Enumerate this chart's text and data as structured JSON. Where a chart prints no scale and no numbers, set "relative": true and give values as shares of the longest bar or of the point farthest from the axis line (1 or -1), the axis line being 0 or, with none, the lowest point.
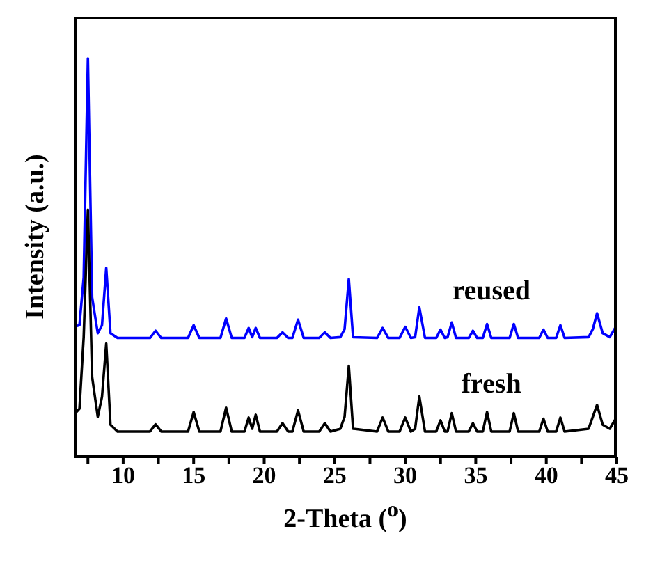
{
  "chart_data": {
    "type": "line",
    "xlabel": "2-Theta ($^{o}$)",
    "ylabel": "Intensity (a.u.)",
    "relative": true,
    "xlim": [
      6.5,
      45
    ],
    "xticks": [
      {
        "value": 7.5,
        "label": null
      },
      10,
      {
        "value": 12.5,
        "label": null
      },
      15,
      {
        "value": 17.5,
        "label": null
      },
      20,
      {
        "value": 22.5,
        "label": null
      },
      25,
      {
        "value": 27.5,
        "label": null
      },
      30,
      {
        "value": 32.5,
        "label": null
      },
      35,
      {
        "value": 37.5,
        "label": null
      },
      40,
      {
        "value": 42.5,
        "label": null
      },
      45
    ],
    "legend": false,
    "marker": "none",
    "line_style": "solid",
    "x": [
      6.5,
      6.9,
      7.2,
      7.5,
      7.8,
      8.2,
      8.5,
      8.8,
      9.1,
      9.6,
      11,
      11.9,
      12.3,
      12.7,
      14.6,
      15,
      15.4,
      16.9,
      17.3,
      17.7,
      18.6,
      18.9,
      19.15,
      19.4,
      19.7,
      20.9,
      21.3,
      21.7,
      22.0,
      22.4,
      22.8,
      23.9,
      24.3,
      24.7,
      25.4,
      25.7,
      26,
      26.3,
      28,
      28.4,
      28.8,
      29.6,
      30,
      30.4,
      30.7,
      31,
      31.4,
      32.2,
      32.5,
      32.8,
      33.0,
      33.3,
      33.6,
      34.5,
      34.8,
      35.1,
      35.5,
      35.8,
      36.1,
      37.4,
      37.7,
      38,
      39.5,
      39.8,
      40.1,
      40.7,
      41,
      41.3,
      43,
      43.3,
      43.6,
      44,
      44.5,
      45
    ],
    "series": [
      {
        "name": "reused",
        "color": "#0000ff",
        "values": [
          0.326,
          0.33,
          0.45,
          1.0,
          0.4,
          0.31,
          0.33,
          0.474,
          0.31,
          0.298,
          0.298,
          0.298,
          0.316,
          0.298,
          0.298,
          0.33,
          0.298,
          0.298,
          0.347,
          0.298,
          0.298,
          0.323,
          0.3,
          0.323,
          0.298,
          0.298,
          0.312,
          0.298,
          0.298,
          0.344,
          0.298,
          0.298,
          0.312,
          0.298,
          0.3,
          0.32,
          0.446,
          0.3,
          0.298,
          0.323,
          0.298,
          0.298,
          0.326,
          0.298,
          0.3,
          0.375,
          0.298,
          0.298,
          0.319,
          0.298,
          0.3,
          0.337,
          0.298,
          0.298,
          0.316,
          0.298,
          0.298,
          0.333,
          0.298,
          0.298,
          0.333,
          0.298,
          0.298,
          0.319,
          0.298,
          0.298,
          0.33,
          0.298,
          0.3,
          0.32,
          0.36,
          0.31,
          0.3,
          0.33
        ]
      },
      {
        "name": "fresh",
        "color": "#000000",
        "values": [
          0.105,
          0.12,
          0.3,
          0.62,
          0.2,
          0.1,
          0.15,
          0.284,
          0.08,
          0.063,
          0.063,
          0.063,
          0.081,
          0.063,
          0.063,
          0.112,
          0.063,
          0.063,
          0.123,
          0.063,
          0.063,
          0.098,
          0.07,
          0.105,
          0.063,
          0.063,
          0.084,
          0.063,
          0.063,
          0.116,
          0.063,
          0.063,
          0.084,
          0.063,
          0.07,
          0.1,
          0.228,
          0.07,
          0.063,
          0.098,
          0.063,
          0.063,
          0.098,
          0.063,
          0.07,
          0.151,
          0.063,
          0.063,
          0.091,
          0.063,
          0.063,
          0.109,
          0.063,
          0.063,
          0.084,
          0.063,
          0.063,
          0.112,
          0.063,
          0.063,
          0.109,
          0.063,
          0.063,
          0.095,
          0.063,
          0.063,
          0.098,
          0.063,
          0.07,
          0.1,
          0.13,
          0.08,
          0.07,
          0.1
        ]
      }
    ]
  }
}
